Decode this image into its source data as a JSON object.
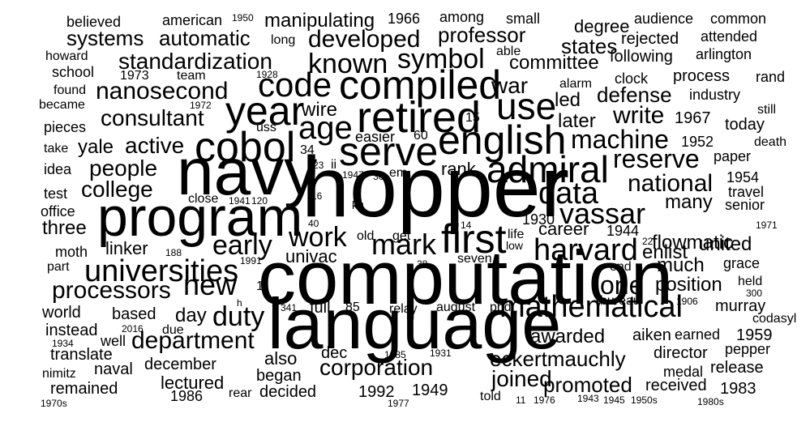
{
  "words": [
    "hopper",
    "computation",
    "language",
    "navy",
    "program",
    "compiled",
    "retired",
    "english",
    "serve",
    "cobol",
    "year",
    "use",
    "first",
    "admiral",
    "code",
    "age",
    "mathematical",
    "harvard",
    "data",
    "vassar",
    "universities",
    "work",
    "new",
    "mark",
    "processors",
    "early",
    "department",
    "duty",
    "symbol",
    "known",
    "developed",
    "standardization",
    "nanosecond",
    "consultant",
    "machine",
    "reserve",
    "national",
    "people",
    "college",
    "active",
    "yale",
    "write",
    "war",
    "led",
    "defense",
    "later",
    "committee",
    "states",
    "professor",
    "systems",
    "automatic",
    "manipulating",
    "corporation",
    "eckertmauchly",
    "joined",
    "promoted",
    "awarded",
    "position",
    "much",
    "one",
    "flowmatic",
    "career",
    "enlist",
    "united",
    "linker",
    "univac",
    "rank",
    "dec",
    "also",
    "began",
    "decided",
    "day",
    "full",
    "lectured",
    "december",
    "naval",
    "remained",
    "translate",
    "based",
    "instead",
    "world",
    "three",
    "office",
    "test",
    "idea",
    "moth",
    "pieces",
    "school",
    "howard",
    "found",
    "became",
    "take",
    "part",
    "nimitz",
    "well",
    "due",
    "rear",
    "believed",
    "american",
    "among",
    "small",
    "degree",
    "audience",
    "common",
    "rejected",
    "attended",
    "following",
    "arlington",
    "clock",
    "process",
    "rand",
    "alarm",
    "industry",
    "still",
    "today",
    "death",
    "paper",
    "travel",
    "senior",
    "many",
    "grace",
    "held",
    "murray",
    "codasyl",
    "earned",
    "director",
    "medal",
    "release",
    "received",
    "told",
    "team",
    "long",
    "able",
    "easier",
    "wire",
    "uss",
    "ii",
    "em",
    "old",
    "get",
    "life",
    "low",
    "seven",
    "relay",
    "august",
    "phd",
    "bureau",
    "aiken",
    "pepper",
    "end",
    "close",
    "kg",
    "1966",
    "1950",
    "1973",
    "1928",
    "1972",
    "1967",
    "1952",
    "1954",
    "1930",
    "1944",
    "1971",
    "1906",
    "300",
    "1959",
    "1983",
    "1949",
    "1992",
    "1986",
    "1970s",
    "1977",
    "1976",
    "1943",
    "1945",
    "11",
    "1950s",
    "1980s",
    "1934",
    "2016",
    "1985",
    "1931",
    "1991",
    "188",
    "341",
    "85",
    "60",
    "34",
    "23",
    "15",
    "22",
    "38",
    "40",
    "14",
    "16",
    "30",
    "1941",
    "120",
    "1947",
    "h",
    "1"
  ]
}
